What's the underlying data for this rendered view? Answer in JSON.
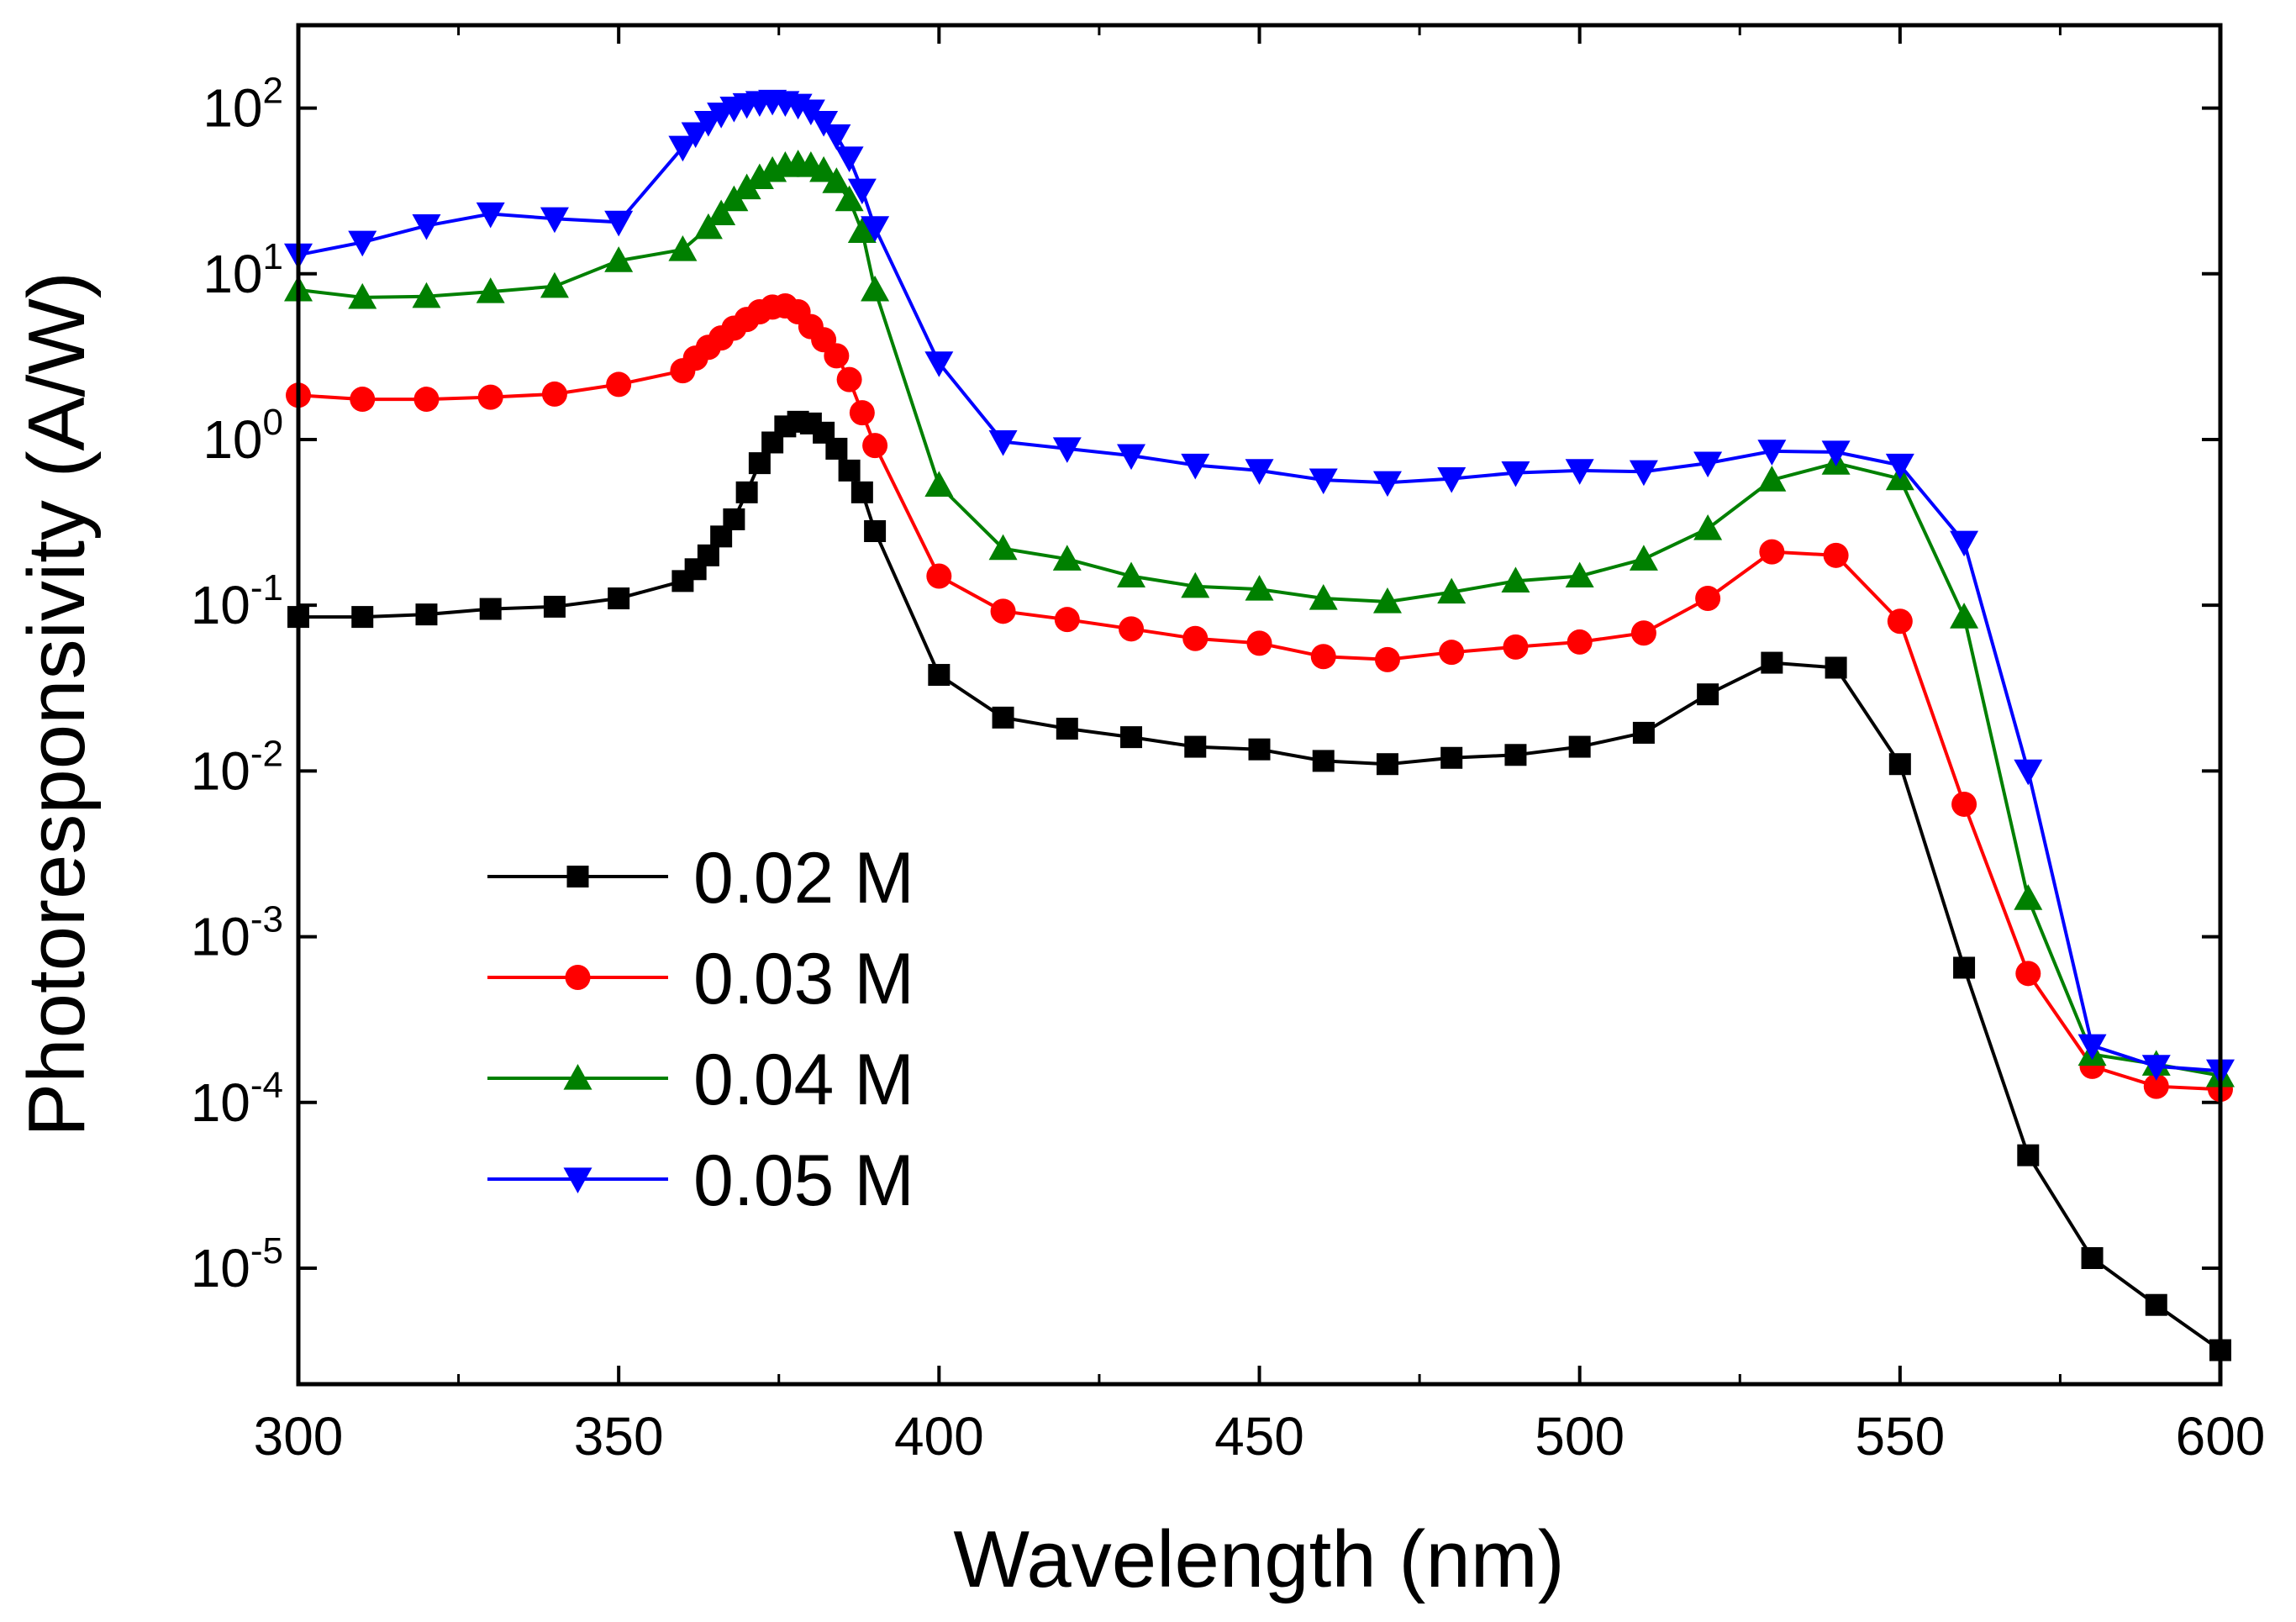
{
  "chart_data": {
    "type": "line",
    "title": "",
    "xlabel": "Wavelength (nm)",
    "ylabel": "Photoresponsivity (A/W)",
    "xlim": [
      300,
      600
    ],
    "ylim_log10": [
      -5.7,
      2.5
    ],
    "y_scale": "log",
    "x_ticks": [
      300,
      350,
      400,
      450,
      500,
      550,
      600
    ],
    "y_ticks": [
      {
        "base": "10",
        "exp": "2",
        "value": 100
      },
      {
        "base": "10",
        "exp": "1",
        "value": 10
      },
      {
        "base": "10",
        "exp": "0",
        "value": 1
      },
      {
        "base": "10",
        "exp": "-1",
        "value": 0.1
      },
      {
        "base": "10",
        "exp": "-2",
        "value": 0.01
      },
      {
        "base": "10",
        "exp": "-3",
        "value": 0.001
      },
      {
        "base": "10",
        "exp": "-4",
        "value": 0.0001
      },
      {
        "base": "10",
        "exp": "-5",
        "value": 1e-05
      }
    ],
    "grid": false,
    "legend_position": "lower-left",
    "series": [
      {
        "name": "0.02 M",
        "color": "#000000",
        "marker": "square",
        "x": [
          300,
          310,
          320,
          330,
          340,
          350,
          360,
          362,
          364,
          366,
          368,
          370,
          372,
          374,
          376,
          378,
          380,
          382,
          384,
          386,
          388,
          390,
          400,
          410,
          420,
          430,
          440,
          450,
          460,
          470,
          480,
          490,
          500,
          510,
          520,
          530,
          540,
          550,
          560,
          570,
          580,
          590,
          600
        ],
        "y": [
          0.085,
          0.085,
          0.088,
          0.095,
          0.098,
          0.11,
          0.14,
          0.165,
          0.2,
          0.26,
          0.33,
          0.48,
          0.72,
          0.96,
          1.2,
          1.28,
          1.25,
          1.1,
          0.88,
          0.65,
          0.48,
          0.28,
          0.038,
          0.021,
          0.018,
          0.016,
          0.014,
          0.0135,
          0.0115,
          0.011,
          0.012,
          0.0125,
          0.014,
          0.017,
          0.029,
          0.045,
          0.042,
          0.011,
          0.00065,
          4.8e-05,
          1.15e-05,
          6e-06,
          3.2e-06
        ]
      },
      {
        "name": "0.03 M",
        "color": "#ff0000",
        "marker": "circle",
        "x": [
          300,
          310,
          320,
          330,
          340,
          350,
          360,
          362,
          364,
          366,
          368,
          370,
          372,
          374,
          376,
          378,
          380,
          382,
          384,
          386,
          388,
          390,
          400,
          410,
          420,
          430,
          440,
          450,
          460,
          470,
          480,
          490,
          500,
          510,
          520,
          530,
          540,
          550,
          560,
          570,
          580,
          590,
          600
        ],
        "y": [
          1.85,
          1.75,
          1.75,
          1.8,
          1.88,
          2.15,
          2.6,
          3.1,
          3.6,
          4.1,
          4.7,
          5.3,
          5.9,
          6.3,
          6.4,
          5.9,
          4.8,
          4.0,
          3.2,
          2.3,
          1.45,
          0.92,
          0.15,
          0.092,
          0.082,
          0.072,
          0.063,
          0.059,
          0.049,
          0.047,
          0.052,
          0.056,
          0.06,
          0.068,
          0.11,
          0.21,
          0.2,
          0.08,
          0.0063,
          0.0006,
          0.000165,
          0.000125,
          0.00012
        ]
      },
      {
        "name": "0.04 M",
        "color": "#008000",
        "marker": "triangle-up",
        "x": [
          300,
          310,
          320,
          330,
          340,
          350,
          360,
          364,
          366,
          368,
          370,
          372,
          374,
          376,
          378,
          380,
          382,
          384,
          386,
          388,
          390,
          400,
          410,
          420,
          430,
          440,
          450,
          460,
          470,
          480,
          490,
          500,
          510,
          520,
          530,
          540,
          550,
          560,
          570,
          580,
          590,
          600
        ],
        "y": [
          8.0,
          7.2,
          7.3,
          7.8,
          8.4,
          12.0,
          14.0,
          19.0,
          23.0,
          28.0,
          33.0,
          38.0,
          42.0,
          45.0,
          46.0,
          45.0,
          42.0,
          36.0,
          28.0,
          18.0,
          8.0,
          0.53,
          0.22,
          0.19,
          0.15,
          0.13,
          0.125,
          0.11,
          0.105,
          0.12,
          0.14,
          0.15,
          0.19,
          0.29,
          0.57,
          0.72,
          0.58,
          0.085,
          0.0017,
          0.000195,
          0.00017,
          0.000145
        ]
      },
      {
        "name": "0.05 M",
        "color": "#0000ff",
        "marker": "triangle-down",
        "x": [
          300,
          310,
          320,
          330,
          340,
          350,
          360,
          362,
          364,
          366,
          368,
          370,
          372,
          374,
          376,
          378,
          380,
          382,
          384,
          386,
          388,
          390,
          400,
          410,
          420,
          430,
          440,
          450,
          460,
          470,
          480,
          490,
          500,
          510,
          520,
          530,
          540,
          550,
          560,
          570,
          580,
          590,
          600
        ],
        "y": [
          13.0,
          15.5,
          19.5,
          23.0,
          21.5,
          20.5,
          58.0,
          70.0,
          82.0,
          92.0,
          100.0,
          105.0,
          108.0,
          110.0,
          108.0,
          104.0,
          96.0,
          82.0,
          68.0,
          50.0,
          32.0,
          19.0,
          2.9,
          0.97,
          0.88,
          0.8,
          0.7,
          0.65,
          0.57,
          0.55,
          0.58,
          0.63,
          0.65,
          0.64,
          0.72,
          0.85,
          0.84,
          0.7,
          0.24,
          0.01,
          0.00022,
          0.000165,
          0.000155
        ]
      }
    ]
  }
}
